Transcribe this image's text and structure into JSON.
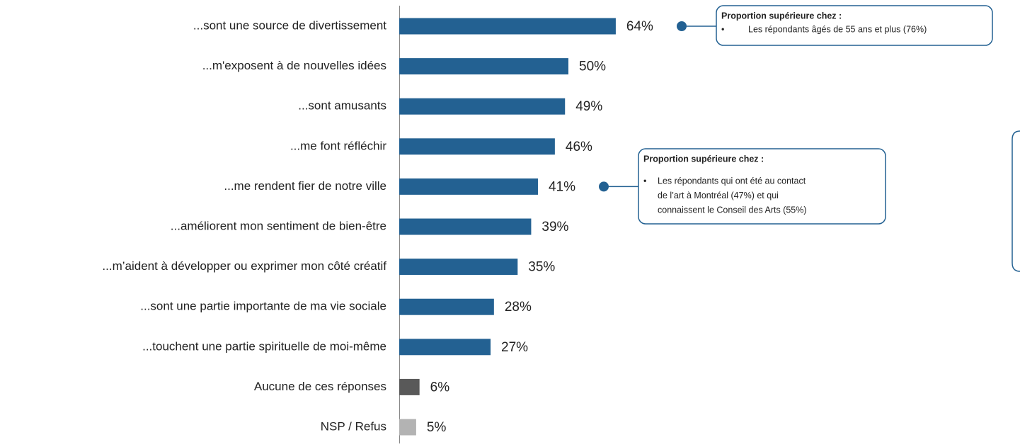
{
  "chart_data": {
    "type": "bar",
    "orientation": "horizontal",
    "categories": [
      "...sont une source de divertissement",
      "...m'exposent à de nouvelles idées",
      "...sont amusants",
      "...me font réfléchir",
      "...me rendent fier de notre ville",
      "...améliorent mon sentiment de bien-être",
      "...m’aident à développer ou exprimer mon côté créatif",
      "...sont une partie importante de ma vie sociale",
      "...touchent une partie spirituelle de moi-même",
      "Aucune de ces réponses",
      "NSP / Refus"
    ],
    "values": [
      64,
      50,
      49,
      46,
      41,
      39,
      35,
      28,
      27,
      6,
      5
    ],
    "value_labels": [
      "64%",
      "50%",
      "49%",
      "46%",
      "41%",
      "39%",
      "35%",
      "28%",
      "27%",
      "6%",
      "5%"
    ],
    "colors": [
      "#236192",
      "#236192",
      "#236192",
      "#236192",
      "#236192",
      "#236192",
      "#236192",
      "#236192",
      "#236192",
      "#595959",
      "#b3b3b3"
    ],
    "annotations": [
      {
        "category_index": 0,
        "title": "Proportion supérieure chez :",
        "lines": [
          "Les répondants âgés de 55 ans et plus (76%)"
        ]
      },
      {
        "category_index": 4,
        "title": "Proportion supérieure chez :",
        "lines": [
          "Les répondants qui ont été au contact",
          "de l’art à Montréal (47%) et qui",
          "connaissent le Conseil des Arts (55%)"
        ]
      }
    ]
  }
}
